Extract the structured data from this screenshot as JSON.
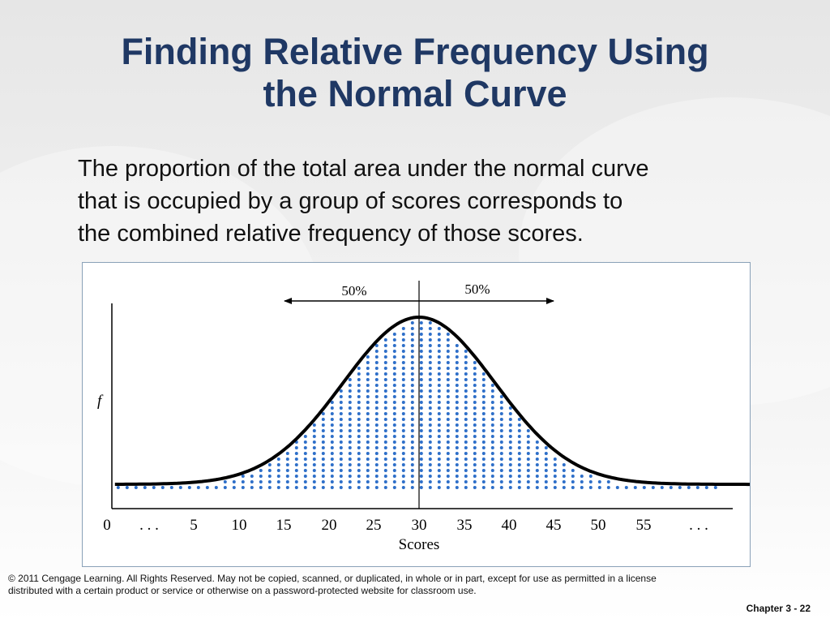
{
  "slide": {
    "title_lines": [
      "Finding Relative Frequency Using",
      "the Normal Curve"
    ],
    "body_lines": [
      "The proportion of the total area under the normal curve",
      "that is occupied by a group of scores corresponds to",
      "the combined relative frequency of those scores."
    ],
    "footer_lines": [
      "© 2011 Cengage Learning. All Rights Reserved. May not be copied, scanned, or duplicated, in whole or in part, except for use as permitted in a license",
      "distributed with a certain product or service or otherwise on a password-protected website for classroom use."
    ],
    "chapter_label": "Chapter 3 - 22"
  },
  "colors": {
    "title": "#1f3864",
    "dots": "#2e6fc9",
    "curve": "#000000"
  },
  "chart_data": {
    "type": "area",
    "title": "",
    "xlabel": "Scores",
    "ylabel": "f",
    "x_tick_labels": [
      "0",
      ". . .",
      "5",
      "10",
      "15",
      "20",
      "25",
      "30",
      "35",
      "40",
      "45",
      "50",
      "55",
      ". . ."
    ],
    "x_ticks": [
      5,
      10,
      15,
      20,
      25,
      30,
      35,
      40,
      45,
      50,
      55
    ],
    "xlim": [
      2,
      62
    ],
    "distribution": {
      "mean": 30,
      "sd": 7
    },
    "annotations": [
      {
        "label": "50%",
        "direction": "left"
      },
      {
        "label": "50%",
        "direction": "right"
      }
    ],
    "grid": false
  }
}
